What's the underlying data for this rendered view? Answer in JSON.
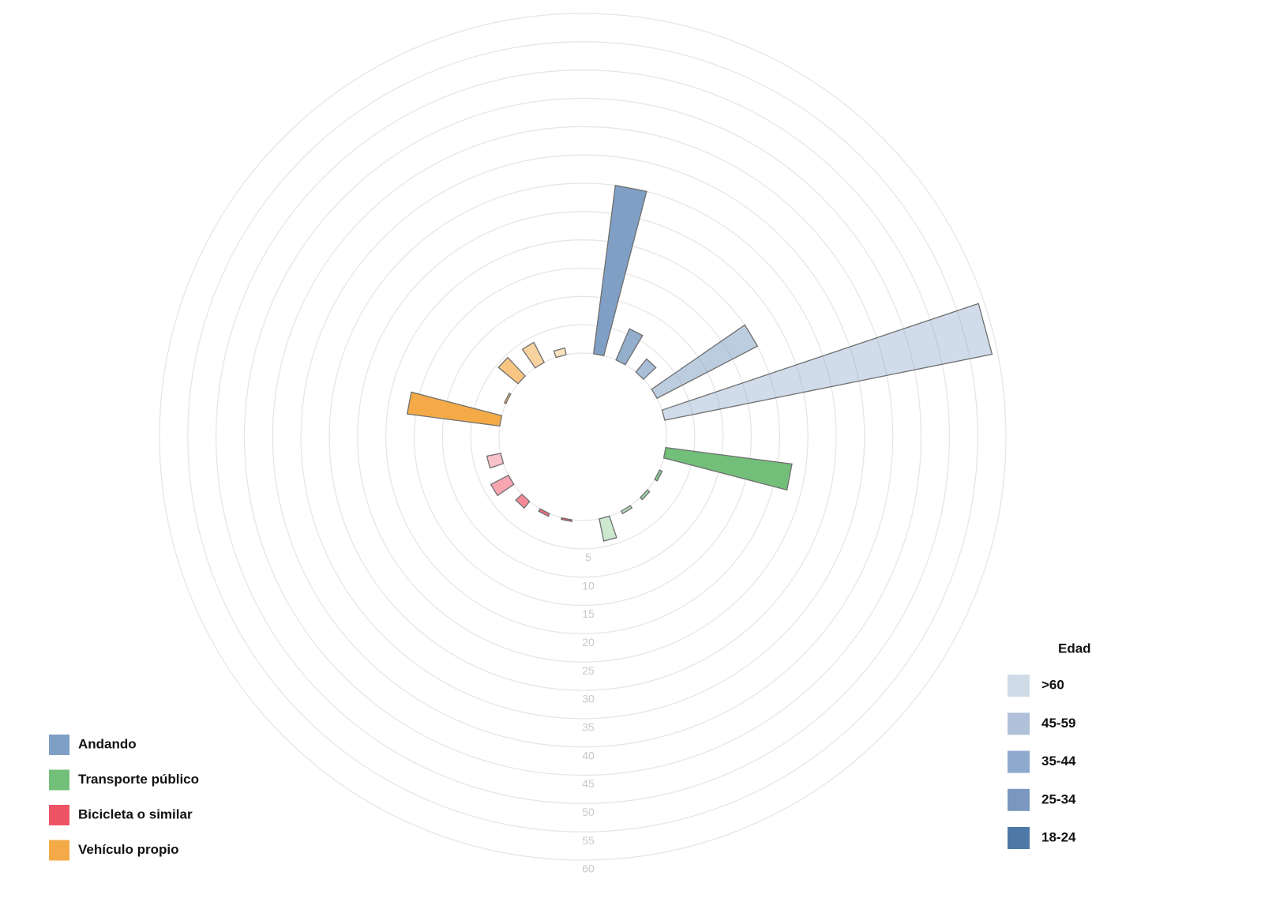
{
  "chart_data": {
    "type": "radial_bar",
    "categories": [
      "18-24",
      "25-34",
      "35-44",
      "45-59",
      ">60"
    ],
    "series": [
      {
        "name": "Andando",
        "color": "#7f9fc4",
        "values": [
          30,
          6,
          3,
          20,
          59
        ]
      },
      {
        "name": "Transporte público",
        "color": "#72bf7a",
        "values": [
          22.5,
          0.5,
          0.5,
          0.5,
          4
        ]
      },
      {
        "name": "Bicicleta o similar",
        "color": "#ef5366",
        "values": [
          0.3,
          0.5,
          1.5,
          3.5,
          2.5
        ]
      },
      {
        "name": "Vehículo propio",
        "color": "#f4ab47",
        "values": [
          16.5,
          0.3,
          4.5,
          4,
          1.2
        ]
      }
    ],
    "age_legend_title": "Edad",
    "age_colors": [
      "#4e79a7",
      "#7a98bf",
      "#8fa9cc",
      "#afc0d8",
      "#d0dbe8"
    ],
    "rlim": [
      0,
      60
    ],
    "rticks": [
      5,
      10,
      15,
      20,
      25,
      30,
      35,
      40,
      45,
      50,
      55,
      60
    ],
    "grid": true
  }
}
